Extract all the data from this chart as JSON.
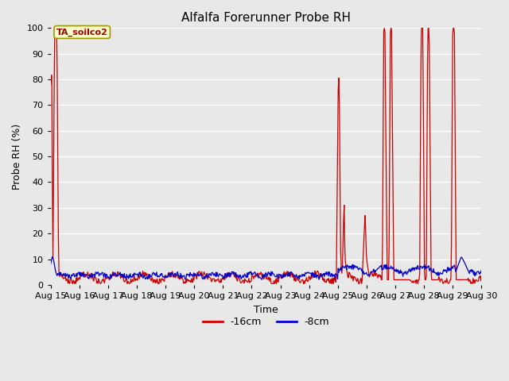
{
  "title": "Alfalfa Forerunner Probe RH",
  "ylabel": "Probe RH (%)",
  "xlabel": "Time",
  "ylim": [
    0,
    100
  ],
  "yticks": [
    0,
    10,
    20,
    30,
    40,
    50,
    60,
    70,
    80,
    90,
    100
  ],
  "xtick_labels": [
    "Aug 15",
    "Aug 16",
    "Aug 17",
    "Aug 18",
    "Aug 19",
    "Aug 20",
    "Aug 21",
    "Aug 22",
    "Aug 23",
    "Aug 24",
    "Aug 25",
    "Aug 26",
    "Aug 27",
    "Aug 28",
    "Aug 29",
    "Aug 30"
  ],
  "annotation_text": "TA_soilco2",
  "line1_color": "#cc0000",
  "line2_color": "#0000cc",
  "legend_labels": [
    "-16cm",
    "-8cm"
  ],
  "fig_facecolor": "#e8e8e8",
  "plot_facecolor": "#e8e8e8",
  "grid_color": "#ffffff",
  "title_fontsize": 11,
  "axis_fontsize": 9,
  "tick_fontsize": 8
}
